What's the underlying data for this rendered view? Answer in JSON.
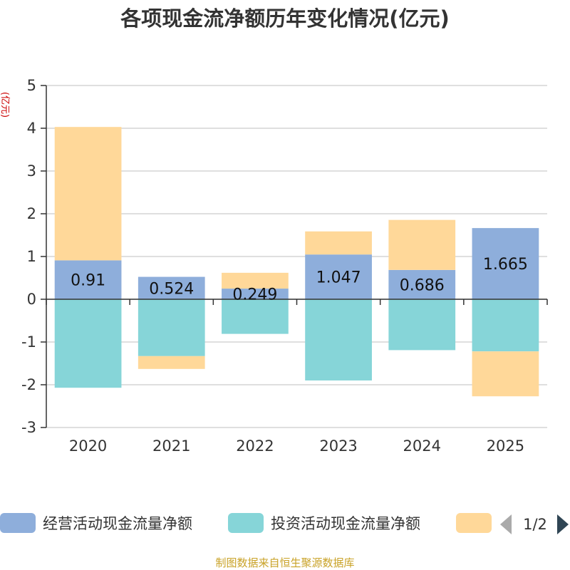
{
  "chart_data": {
    "type": "bar",
    "stacked": true,
    "title": "各项现金流净额历年变化情况(亿元)",
    "ylabel": "(亿元)",
    "xlabel": "",
    "categories": [
      "2020",
      "2021",
      "2022",
      "2023",
      "2024",
      "2025"
    ],
    "ylim": [
      -3,
      5
    ],
    "yticks": [
      5,
      4,
      3,
      2,
      1,
      0,
      -1,
      -2,
      -3
    ],
    "ytick_labels": [
      "5",
      "4",
      "3",
      "2",
      "1",
      "0",
      "-1",
      "-2",
      "-3"
    ],
    "series": [
      {
        "name": "经营活动现金流量净额",
        "color": "#8eaedb",
        "values": [
          0.91,
          0.524,
          0.249,
          1.047,
          0.686,
          1.665
        ],
        "labels": [
          "0.91",
          "0.524",
          "0.249",
          "1.047",
          "0.686",
          "1.665"
        ]
      },
      {
        "name": "投资活动现金流量净额",
        "color": "#86d5d8",
        "values": [
          -2.07,
          -1.33,
          -0.81,
          -1.9,
          -1.19,
          -1.22
        ]
      },
      {
        "name": "",
        "color": "#ffd899",
        "values": [
          3.12,
          -0.3,
          0.37,
          0.54,
          1.17,
          -1.05
        ]
      }
    ],
    "grid": true,
    "legend_position": "bottom"
  },
  "legend": {
    "page_indicator": "1/2"
  },
  "source_text": "制图数据来自恒生聚源数据库"
}
